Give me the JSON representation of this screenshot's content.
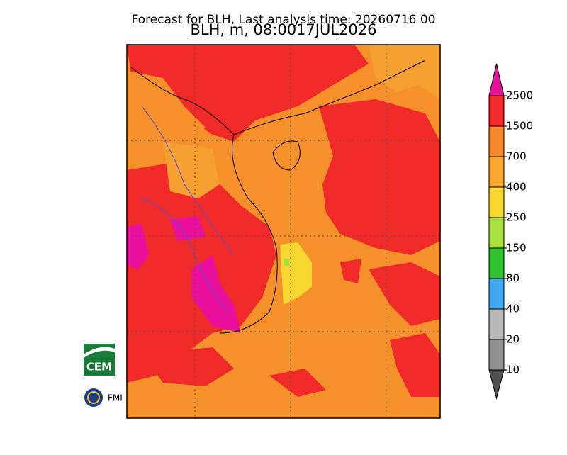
{
  "header": {
    "title": "Forecast for BLH, Last analysis time: 20260716 00",
    "subtitle": "BLH, m, 08:0017JUL2026"
  },
  "colorbar": {
    "labels": [
      2500,
      1500,
      700,
      400,
      250,
      150,
      80,
      40,
      20,
      10
    ],
    "colors": [
      "#e8109c",
      "#f02a28",
      "#f5882a",
      "#f8a830",
      "#f8d830",
      "#a8e040",
      "#30c030",
      "#40a8f0",
      "#b8b8b8",
      "#909090",
      "#505050"
    ]
  },
  "logos": {
    "cem": "CEM",
    "fmi": "FMI"
  }
}
